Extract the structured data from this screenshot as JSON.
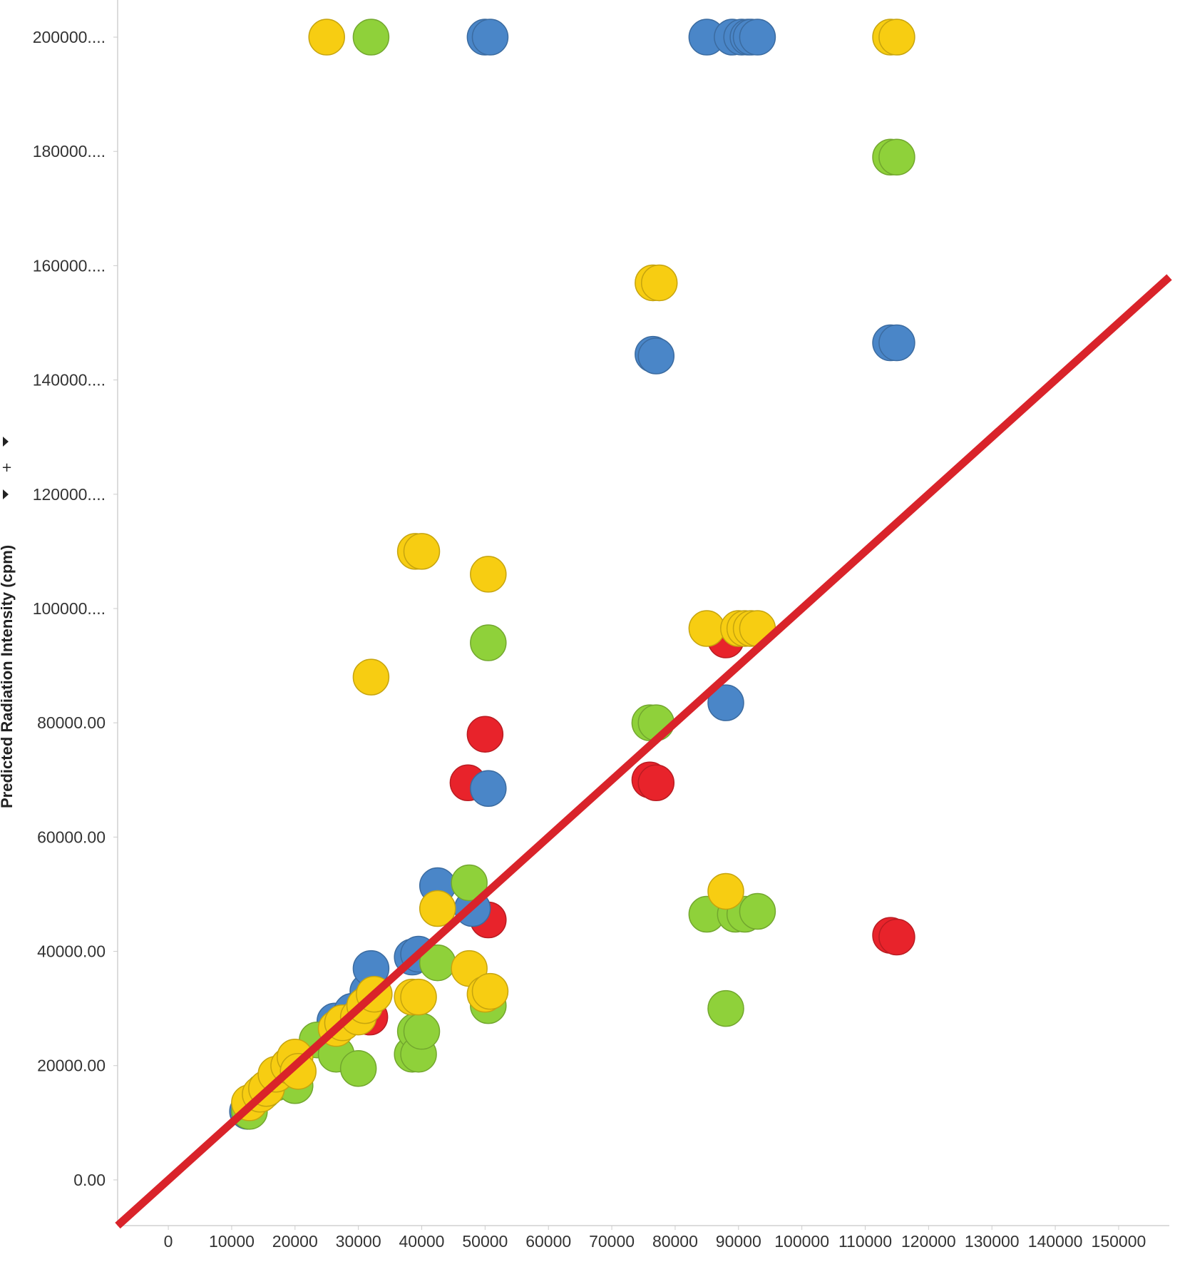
{
  "chart_data": {
    "type": "scatter",
    "title": "",
    "xlabel": "",
    "ylabel": "Predicted Radiation Intensity (cpm)",
    "x_ticks": [
      {
        "value": 0,
        "label": "0"
      },
      {
        "value": 10000,
        "label": "10000"
      },
      {
        "value": 20000,
        "label": "20000"
      },
      {
        "value": 30000,
        "label": "30000"
      },
      {
        "value": 40000,
        "label": "40000"
      },
      {
        "value": 50000,
        "label": "50000"
      },
      {
        "value": 60000,
        "label": "60000"
      },
      {
        "value": 70000,
        "label": "70000"
      },
      {
        "value": 80000,
        "label": "80000"
      },
      {
        "value": 90000,
        "label": "90000"
      },
      {
        "value": 100000,
        "label": "100000"
      },
      {
        "value": 110000,
        "label": "110000"
      },
      {
        "value": 120000,
        "label": "120000"
      },
      {
        "value": 130000,
        "label": "130000"
      },
      {
        "value": 140000,
        "label": "140000"
      },
      {
        "value": 150000,
        "label": "150000"
      }
    ],
    "y_ticks": [
      {
        "value": 0,
        "label": "0.00"
      },
      {
        "value": 20000,
        "label": "20000.00"
      },
      {
        "value": 40000,
        "label": "40000.00"
      },
      {
        "value": 60000,
        "label": "60000.00"
      },
      {
        "value": 80000,
        "label": "80000.00"
      },
      {
        "value": 100000,
        "label": "100000...."
      },
      {
        "value": 120000,
        "label": "120000...."
      },
      {
        "value": 140000,
        "label": "140000...."
      },
      {
        "value": 160000,
        "label": "160000...."
      },
      {
        "value": 180000,
        "label": "180000...."
      },
      {
        "value": 200000,
        "label": "200000...."
      }
    ],
    "xlim": [
      -8000,
      158000
    ],
    "ylim": [
      -8000,
      206500
    ],
    "grid": false,
    "legend": "none",
    "trend_line": {
      "color": "#d9232a",
      "x": [
        -8000,
        158000
      ],
      "y": [
        -8000,
        158000
      ]
    },
    "series": [
      {
        "color": "#e8232b",
        "points": [
          [
            31800,
            28500
          ],
          [
            47300,
            69500
          ],
          [
            50000,
            78000
          ],
          [
            50500,
            45500
          ],
          [
            76000,
            70000
          ],
          [
            77000,
            69500
          ],
          [
            88000,
            94500
          ],
          [
            114000,
            42800
          ],
          [
            115000,
            42500
          ]
        ]
      },
      {
        "color": "#4a86c8",
        "points": [
          [
            12500,
            12000
          ],
          [
            26300,
            27800
          ],
          [
            29000,
            29500
          ],
          [
            31500,
            33000
          ],
          [
            32000,
            37000
          ],
          [
            38500,
            39000
          ],
          [
            39500,
            39500
          ],
          [
            42500,
            51500
          ],
          [
            48000,
            47500
          ],
          [
            50000,
            200000
          ],
          [
            50500,
            68500
          ],
          [
            50800,
            200000
          ],
          [
            76500,
            144500
          ],
          [
            77000,
            144200
          ],
          [
            85000,
            200000
          ],
          [
            88000,
            83500
          ],
          [
            89000,
            200000
          ],
          [
            90500,
            200000
          ],
          [
            91500,
            200000
          ],
          [
            92000,
            200000
          ],
          [
            93000,
            200000
          ],
          [
            114000,
            146500
          ],
          [
            115000,
            146500
          ]
        ]
      },
      {
        "color": "#8fd13a",
        "points": [
          [
            12800,
            12000
          ],
          [
            15000,
            15500
          ],
          [
            17000,
            17000
          ],
          [
            20000,
            16500
          ],
          [
            23500,
            24500
          ],
          [
            26500,
            22000
          ],
          [
            30000,
            19500
          ],
          [
            32000,
            200000
          ],
          [
            38500,
            22000
          ],
          [
            39000,
            26000
          ],
          [
            39500,
            22000
          ],
          [
            40000,
            26000
          ],
          [
            42500,
            38000
          ],
          [
            47500,
            52000
          ],
          [
            50500,
            30500
          ],
          [
            50500,
            94000
          ],
          [
            76000,
            80000
          ],
          [
            77000,
            80000
          ],
          [
            85000,
            46500
          ],
          [
            88000,
            30000
          ],
          [
            89500,
            46500
          ],
          [
            91000,
            46500
          ],
          [
            93000,
            47000
          ],
          [
            114000,
            179000
          ],
          [
            115000,
            179000
          ]
        ]
      },
      {
        "color": "#f7cd12",
        "points": [
          [
            12800,
            13500
          ],
          [
            14500,
            15000
          ],
          [
            15500,
            16000
          ],
          [
            17000,
            18500
          ],
          [
            19000,
            20000
          ],
          [
            20000,
            21500
          ],
          [
            20500,
            19000
          ],
          [
            25000,
            200000
          ],
          [
            26500,
            26500
          ],
          [
            27500,
            27500
          ],
          [
            30000,
            28500
          ],
          [
            31000,
            30500
          ],
          [
            32000,
            88000
          ],
          [
            32500,
            32500
          ],
          [
            38500,
            32000
          ],
          [
            39000,
            110000
          ],
          [
            39500,
            32000
          ],
          [
            40000,
            110000
          ],
          [
            42500,
            47500
          ],
          [
            47500,
            37000
          ],
          [
            50000,
            32500
          ],
          [
            50500,
            106000
          ],
          [
            50800,
            33000
          ],
          [
            76500,
            157000
          ],
          [
            77500,
            157000
          ],
          [
            85000,
            96500
          ],
          [
            88000,
            50500
          ],
          [
            90000,
            96500
          ],
          [
            91000,
            96500
          ],
          [
            92000,
            96500
          ],
          [
            93000,
            96500
          ],
          [
            114000,
            200000
          ],
          [
            115000,
            200000
          ]
        ]
      }
    ]
  }
}
